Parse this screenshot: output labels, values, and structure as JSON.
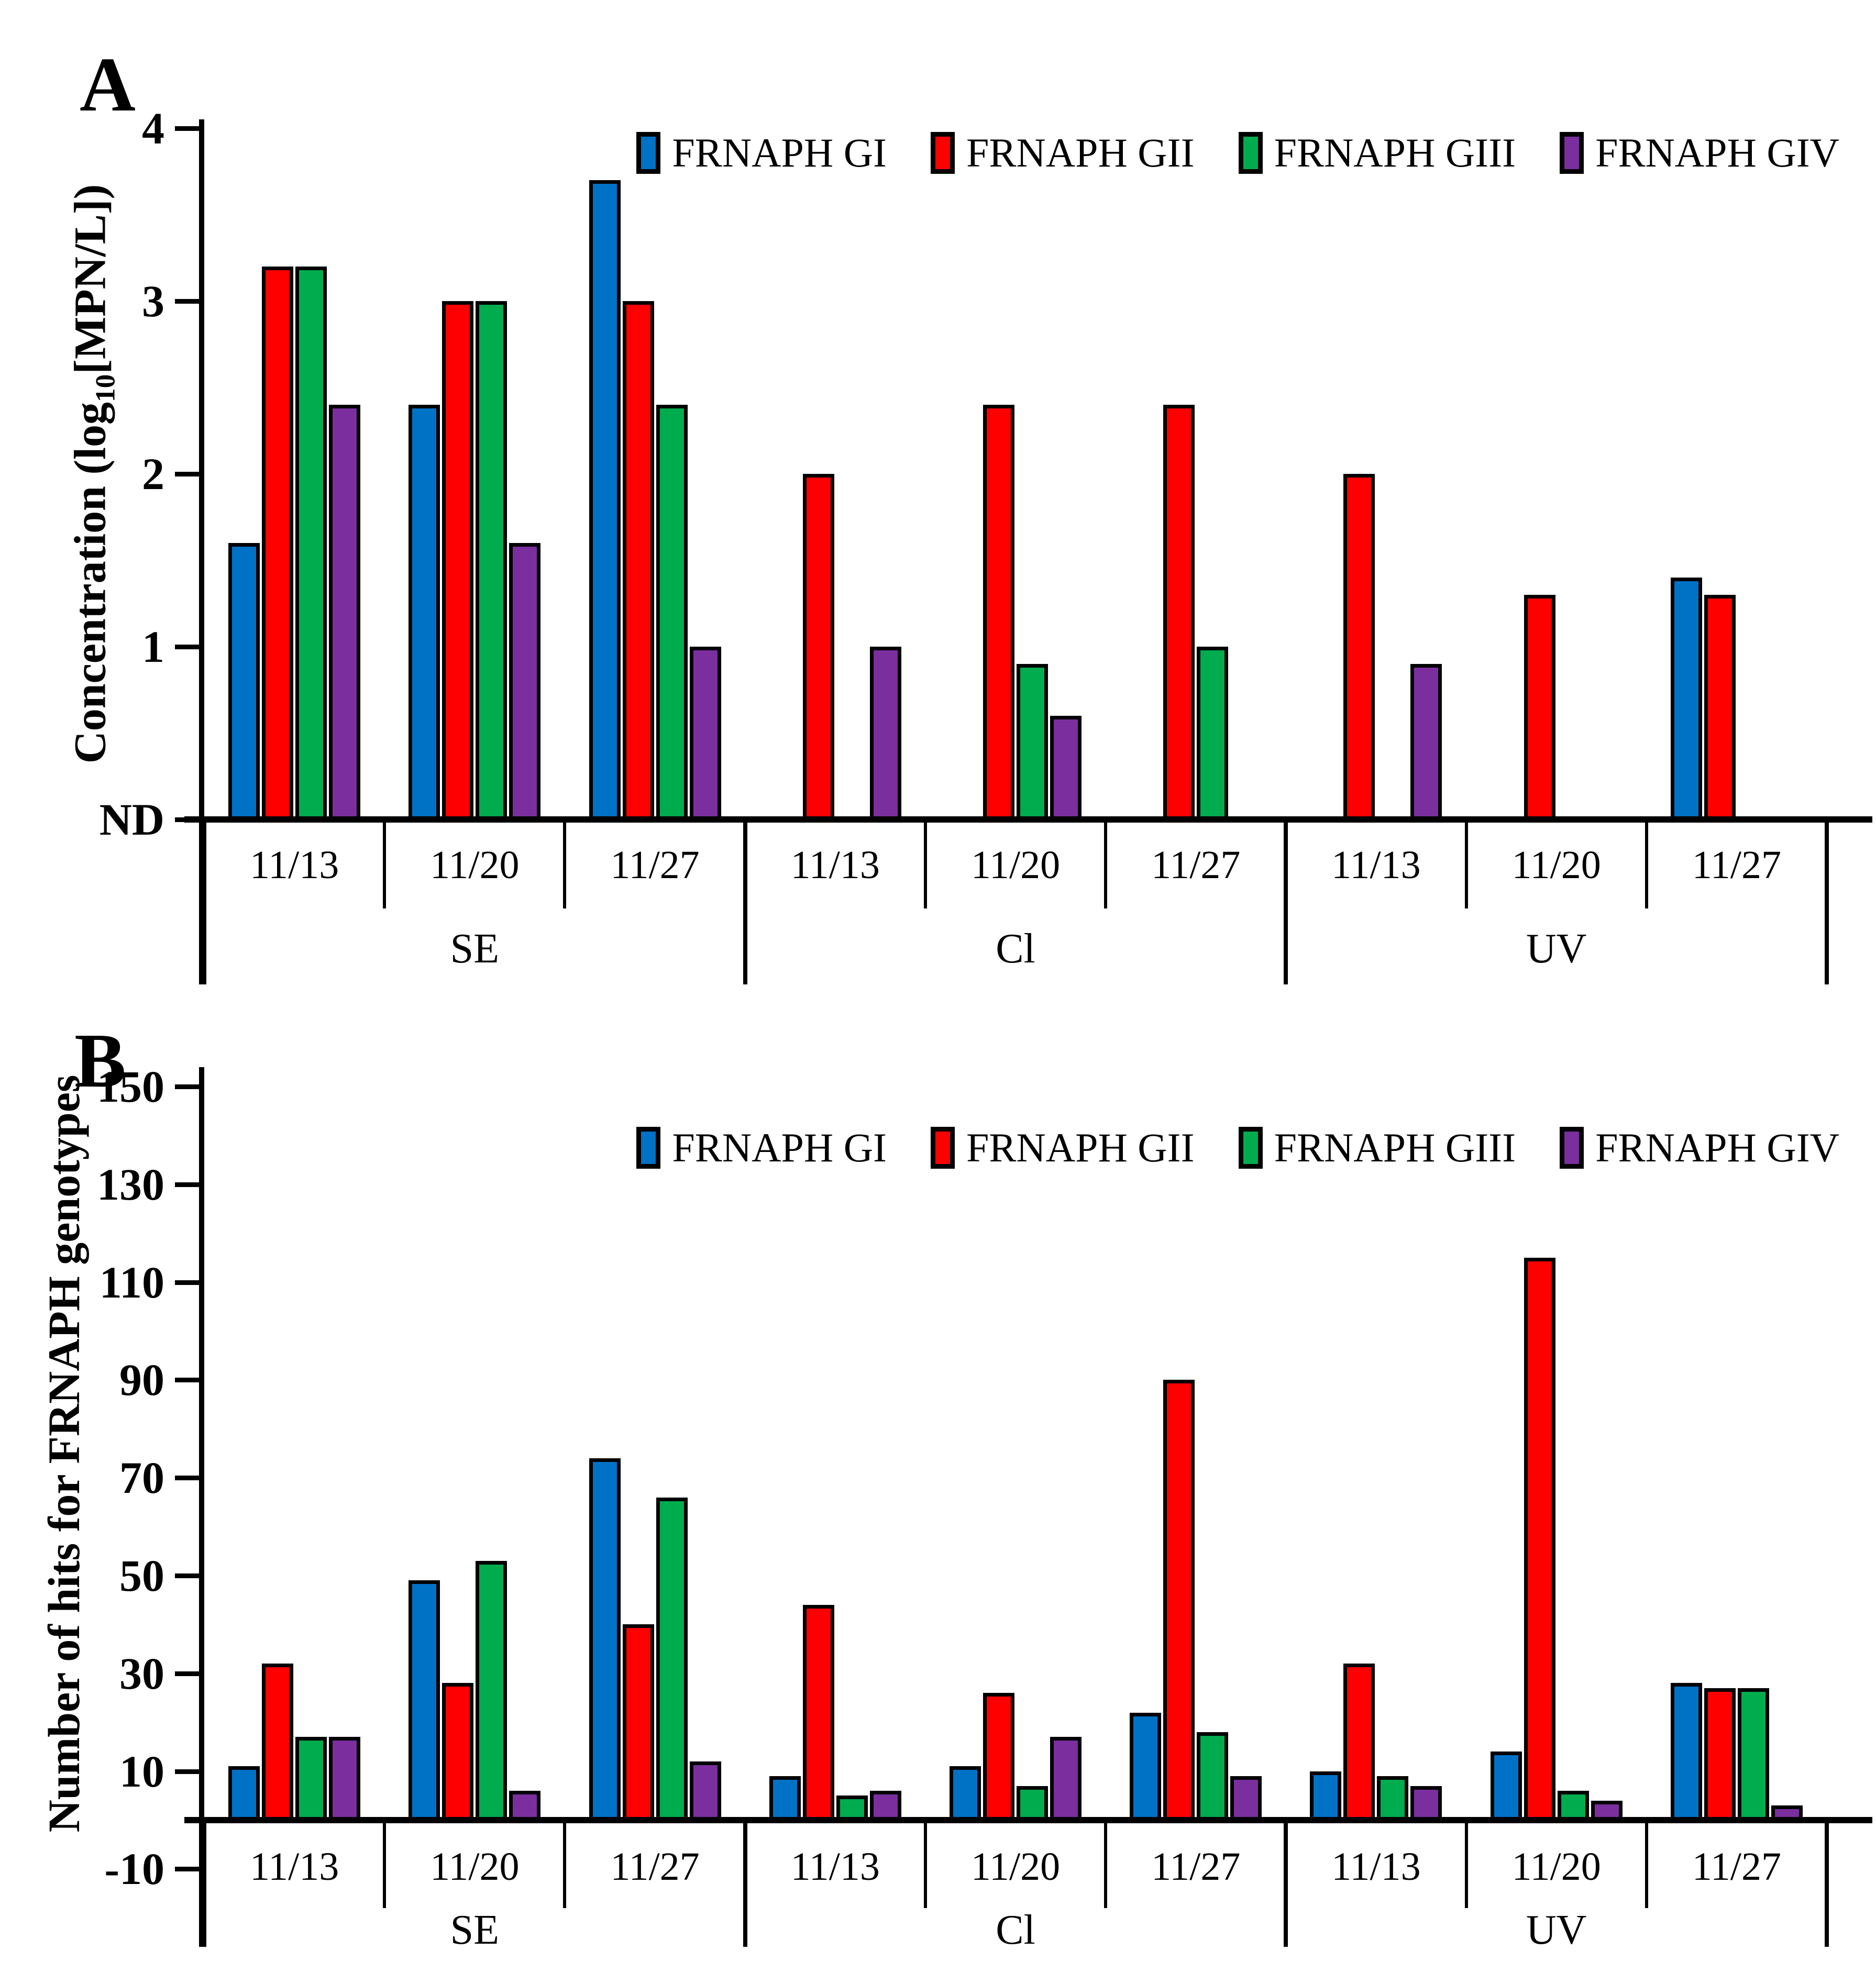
{
  "figure": {
    "background": "#ffffff",
    "axis_color": "#000000"
  },
  "legend": {
    "items": [
      {
        "label": "FRNAPH GI",
        "color": "#0072C6"
      },
      {
        "label": "FRNAPH GII",
        "color": "#FF0000"
      },
      {
        "label": "FRNAPH GIII",
        "color": "#00AC4E"
      },
      {
        "label": "FRNAPH GIV",
        "color": "#7B2F9E"
      }
    ]
  },
  "chart_data": [
    {
      "panel_letter": "A",
      "type": "bar",
      "ylabel_parts": [
        {
          "text": "Concentration (log"
        },
        {
          "text": "10",
          "sub": true
        },
        {
          "text": "[MPN/L])"
        }
      ],
      "ylim": [
        0,
        4
      ],
      "baseline_value": 0,
      "grid": false,
      "legend_position": "top-right-inside",
      "yticks": [
        {
          "label": "4",
          "value": 4
        },
        {
          "label": "3",
          "value": 3
        },
        {
          "label": "2",
          "value": 2
        },
        {
          "label": "1",
          "value": 1
        },
        {
          "label": "ND",
          "value": 0
        }
      ],
      "groups": [
        {
          "label": "SE",
          "dates": [
            "11/13",
            "11/20",
            "11/27"
          ]
        },
        {
          "label": "Cl",
          "dates": [
            "11/13",
            "11/20",
            "11/27"
          ]
        },
        {
          "label": "UV",
          "dates": [
            "11/13",
            "11/20",
            "11/27"
          ]
        }
      ],
      "series": [
        {
          "name": "FRNAPH GI",
          "color": "#0072C6",
          "values": [
            1.6,
            2.4,
            3.7,
            0,
            0,
            0,
            0,
            0,
            1.4
          ]
        },
        {
          "name": "FRNAPH GII",
          "color": "#FF0000",
          "values": [
            3.2,
            3.0,
            3.0,
            2.0,
            2.4,
            2.4,
            2.0,
            1.3,
            1.3
          ]
        },
        {
          "name": "FRNAPH GIII",
          "color": "#00AC4E",
          "values": [
            3.2,
            3.0,
            2.4,
            0,
            0.9,
            1.0,
            0,
            0,
            0
          ]
        },
        {
          "name": "FRNAPH GIV",
          "color": "#7B2F9E",
          "values": [
            2.4,
            1.6,
            1.0,
            1.0,
            0.6,
            0,
            0.9,
            0,
            0
          ]
        }
      ]
    },
    {
      "panel_letter": "B",
      "type": "bar",
      "ylabel_parts": [
        {
          "text": "Number of hits for FRNAPH genotypes"
        }
      ],
      "ylim": [
        -10,
        150
      ],
      "baseline_value": 0,
      "grid": false,
      "legend_position": "top-right-inside",
      "yticks": [
        {
          "label": "150",
          "value": 150
        },
        {
          "label": "130",
          "value": 130
        },
        {
          "label": "110",
          "value": 110
        },
        {
          "label": "90",
          "value": 90
        },
        {
          "label": "70",
          "value": 70
        },
        {
          "label": "50",
          "value": 50
        },
        {
          "label": "30",
          "value": 30
        },
        {
          "label": "10",
          "value": 10
        },
        {
          "label": "-10",
          "value": -10
        }
      ],
      "groups": [
        {
          "label": "SE",
          "dates": [
            "11/13",
            "11/20",
            "11/27"
          ]
        },
        {
          "label": "Cl",
          "dates": [
            "11/13",
            "11/20",
            "11/27"
          ]
        },
        {
          "label": "UV",
          "dates": [
            "11/13",
            "11/20",
            "11/27"
          ]
        }
      ],
      "series": [
        {
          "name": "FRNAPH GI",
          "color": "#0072C6",
          "values": [
            11,
            49,
            74,
            9,
            11,
            22,
            10,
            14,
            28
          ]
        },
        {
          "name": "FRNAPH GII",
          "color": "#FF0000",
          "values": [
            32,
            28,
            40,
            44,
            26,
            90,
            32,
            115,
            27
          ]
        },
        {
          "name": "FRNAPH GIII",
          "color": "#00AC4E",
          "values": [
            17,
            53,
            66,
            5,
            7,
            18,
            9,
            6,
            27
          ]
        },
        {
          "name": "FRNAPH GIV",
          "color": "#7B2F9E",
          "values": [
            17,
            6,
            12,
            6,
            17,
            9,
            7,
            4,
            3
          ]
        }
      ]
    }
  ]
}
